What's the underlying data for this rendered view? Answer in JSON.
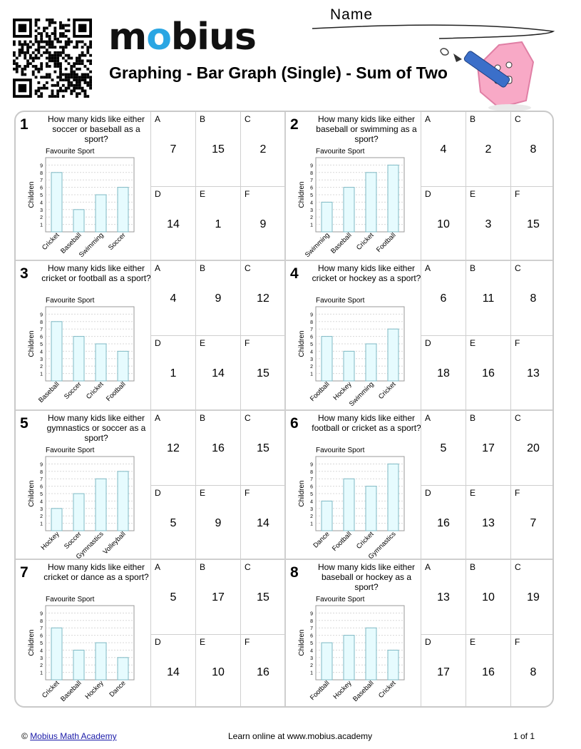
{
  "header": {
    "logo_text": "mobius",
    "title": "Graphing - Bar Graph (Single) - Sum of Two",
    "name_label": "Name",
    "brand_color": "#2ba6e3"
  },
  "chart_style": {
    "bar_fill": "#e6fbfe",
    "bar_stroke": "#7fb9c4",
    "grid_color": "#d8d8d8"
  },
  "questions": [
    {
      "number": "1",
      "text": "How many kids like either soccer or baseball as a sport?",
      "chart_data": {
        "type": "bar",
        "title": "Favourite Sport",
        "ylabel": "Children",
        "ylim": [
          0,
          10
        ],
        "yticks": [
          "1",
          "2",
          "3",
          "4",
          "5",
          "6",
          "7",
          "8",
          "9"
        ],
        "categories": [
          "Cricket",
          "Baseball",
          "Swimming",
          "Soccer"
        ],
        "values": [
          8,
          3,
          5,
          6
        ]
      },
      "options": [
        {
          "letter": "A",
          "value": "7"
        },
        {
          "letter": "B",
          "value": "15"
        },
        {
          "letter": "C",
          "value": "2"
        },
        {
          "letter": "D",
          "value": "14"
        },
        {
          "letter": "E",
          "value": "1"
        },
        {
          "letter": "F",
          "value": "9"
        }
      ]
    },
    {
      "number": "2",
      "text": "How many kids like either baseball or swimming as a sport?",
      "chart_data": {
        "type": "bar",
        "title": "Favourite Sport",
        "ylabel": "Children",
        "ylim": [
          0,
          10
        ],
        "yticks": [
          "1",
          "2",
          "3",
          "4",
          "5",
          "6",
          "7",
          "8",
          "9"
        ],
        "categories": [
          "Swimming",
          "Baseball",
          "Cricket",
          "Football"
        ],
        "values": [
          4,
          6,
          8,
          9
        ]
      },
      "options": [
        {
          "letter": "A",
          "value": "4"
        },
        {
          "letter": "B",
          "value": "2"
        },
        {
          "letter": "C",
          "value": "8"
        },
        {
          "letter": "D",
          "value": "10"
        },
        {
          "letter": "E",
          "value": "3"
        },
        {
          "letter": "F",
          "value": "15"
        }
      ]
    },
    {
      "number": "3",
      "text": "How many kids like either cricket or football as a sport?",
      "chart_data": {
        "type": "bar",
        "title": "Favourite Sport",
        "ylabel": "Children",
        "ylim": [
          0,
          10
        ],
        "yticks": [
          "1",
          "2",
          "3",
          "4",
          "5",
          "6",
          "7",
          "8",
          "9"
        ],
        "categories": [
          "Baseball",
          "Soccer",
          "Cricket",
          "Football"
        ],
        "values": [
          8,
          6,
          5,
          4
        ]
      },
      "options": [
        {
          "letter": "A",
          "value": "4"
        },
        {
          "letter": "B",
          "value": "9"
        },
        {
          "letter": "C",
          "value": "12"
        },
        {
          "letter": "D",
          "value": "1"
        },
        {
          "letter": "E",
          "value": "14"
        },
        {
          "letter": "F",
          "value": "15"
        }
      ]
    },
    {
      "number": "4",
      "text": "How many kids like either cricket or hockey as a sport?",
      "chart_data": {
        "type": "bar",
        "title": "Favourite Sport",
        "ylabel": "Children",
        "ylim": [
          0,
          10
        ],
        "yticks": [
          "1",
          "2",
          "3",
          "4",
          "5",
          "6",
          "7",
          "8",
          "9"
        ],
        "categories": [
          "Football",
          "Hockey",
          "Swimming",
          "Cricket"
        ],
        "values": [
          6,
          4,
          5,
          7
        ]
      },
      "options": [
        {
          "letter": "A",
          "value": "6"
        },
        {
          "letter": "B",
          "value": "11"
        },
        {
          "letter": "C",
          "value": "8"
        },
        {
          "letter": "D",
          "value": "18"
        },
        {
          "letter": "E",
          "value": "16"
        },
        {
          "letter": "F",
          "value": "13"
        }
      ]
    },
    {
      "number": "5",
      "text": "How many kids like either gymnastics or soccer as a sport?",
      "chart_data": {
        "type": "bar",
        "title": "Favourite Sport",
        "ylabel": "Children",
        "ylim": [
          0,
          10
        ],
        "yticks": [
          "1",
          "2",
          "3",
          "4",
          "5",
          "6",
          "7",
          "8",
          "9"
        ],
        "categories": [
          "Hockey",
          "Soccer",
          "Gymnastics",
          "Volleyball"
        ],
        "values": [
          3,
          5,
          7,
          8
        ]
      },
      "options": [
        {
          "letter": "A",
          "value": "12"
        },
        {
          "letter": "B",
          "value": "16"
        },
        {
          "letter": "C",
          "value": "15"
        },
        {
          "letter": "D",
          "value": "5"
        },
        {
          "letter": "E",
          "value": "9"
        },
        {
          "letter": "F",
          "value": "14"
        }
      ]
    },
    {
      "number": "6",
      "text": "How many kids like either football or cricket as a sport?",
      "chart_data": {
        "type": "bar",
        "title": "Favourite Sport",
        "ylabel": "Children",
        "ylim": [
          0,
          10
        ],
        "yticks": [
          "1",
          "2",
          "3",
          "4",
          "5",
          "6",
          "7",
          "8",
          "9"
        ],
        "categories": [
          "Dance",
          "Football",
          "Cricket",
          "Gymnastics"
        ],
        "values": [
          4,
          7,
          6,
          9
        ]
      },
      "options": [
        {
          "letter": "A",
          "value": "5"
        },
        {
          "letter": "B",
          "value": "17"
        },
        {
          "letter": "C",
          "value": "20"
        },
        {
          "letter": "D",
          "value": "16"
        },
        {
          "letter": "E",
          "value": "13"
        },
        {
          "letter": "F",
          "value": "7"
        }
      ]
    },
    {
      "number": "7",
      "text": "How many kids like either cricket or dance as a sport?",
      "chart_data": {
        "type": "bar",
        "title": "Favourite Sport",
        "ylabel": "Children",
        "ylim": [
          0,
          10
        ],
        "yticks": [
          "1",
          "2",
          "3",
          "4",
          "5",
          "6",
          "7",
          "8",
          "9"
        ],
        "categories": [
          "Cricket",
          "Baseball",
          "Hockey",
          "Dance"
        ],
        "values": [
          7,
          4,
          5,
          3
        ]
      },
      "options": [
        {
          "letter": "A",
          "value": "5"
        },
        {
          "letter": "B",
          "value": "17"
        },
        {
          "letter": "C",
          "value": "15"
        },
        {
          "letter": "D",
          "value": "14"
        },
        {
          "letter": "E",
          "value": "10"
        },
        {
          "letter": "F",
          "value": "16"
        }
      ]
    },
    {
      "number": "8",
      "text": "How many kids like either baseball or hockey as a sport?",
      "chart_data": {
        "type": "bar",
        "title": "Favourite Sport",
        "ylabel": "Children",
        "ylim": [
          0,
          10
        ],
        "yticks": [
          "1",
          "2",
          "3",
          "4",
          "5",
          "6",
          "7",
          "8",
          "9"
        ],
        "categories": [
          "Football",
          "Hockey",
          "Baseball",
          "Cricket"
        ],
        "values": [
          5,
          6,
          7,
          4
        ]
      },
      "options": [
        {
          "letter": "A",
          "value": "13"
        },
        {
          "letter": "B",
          "value": "10"
        },
        {
          "letter": "C",
          "value": "19"
        },
        {
          "letter": "D",
          "value": "17"
        },
        {
          "letter": "E",
          "value": "16"
        },
        {
          "letter": "F",
          "value": "8"
        }
      ]
    }
  ],
  "footer": {
    "copyright_symbol": "©",
    "link_text": "Mobius Math Academy",
    "center_text": "Learn online at www.mobius.academy",
    "page": "1 of 1"
  }
}
